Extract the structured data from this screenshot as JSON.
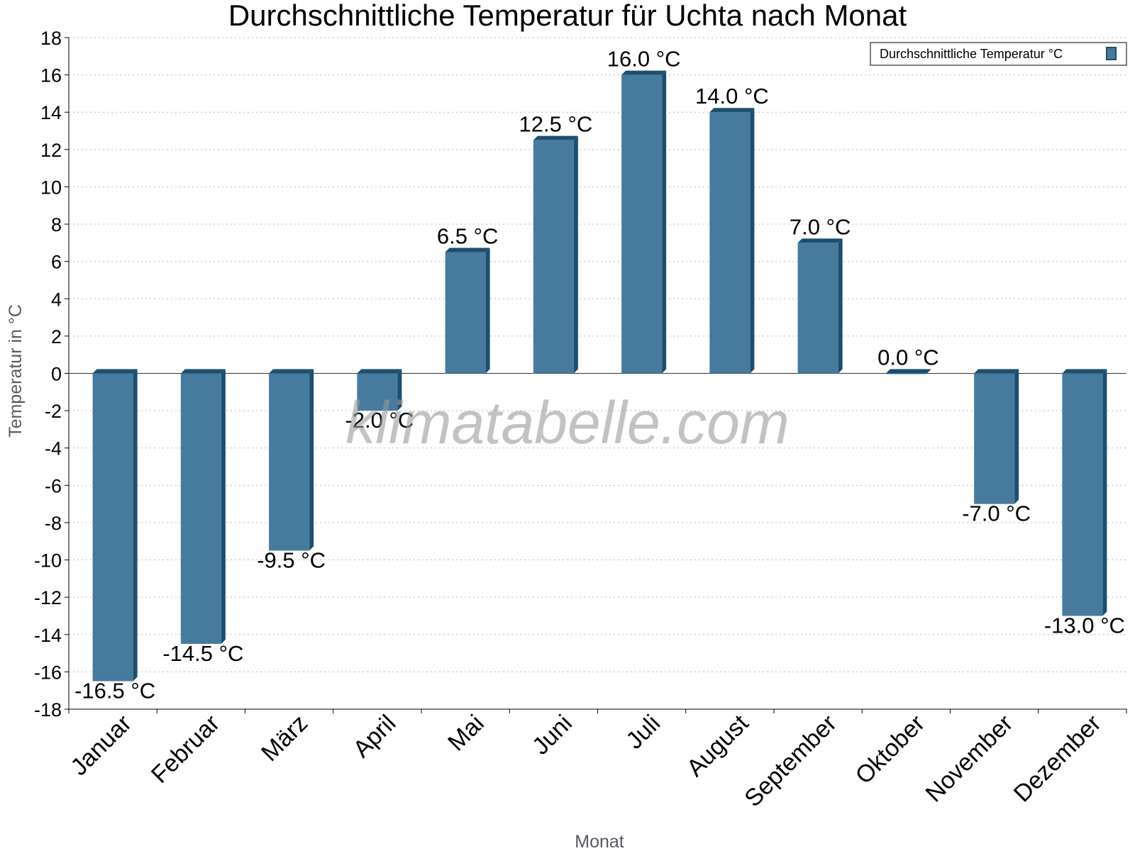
{
  "chart_data": {
    "type": "bar",
    "title": "Durchschnittliche Temperatur für Uchta nach Monat",
    "xlabel": "Monat",
    "ylabel": "Temperatur in °C",
    "categories": [
      "Januar",
      "Februar",
      "März",
      "April",
      "Mai",
      "Juni",
      "Juli",
      "August",
      "September",
      "Oktober",
      "November",
      "Dezember"
    ],
    "series": [
      {
        "name": "Durchschnittliche Temperatur °C",
        "values": [
          -16.5,
          -14.5,
          -9.5,
          -2.0,
          6.5,
          12.5,
          16.0,
          14.0,
          7.0,
          0.0,
          -7.0,
          -13.0
        ],
        "labels": [
          "-16.5 °C",
          "-14.5 °C",
          "-9.5 °C",
          "-2.0 °C",
          "6.5 °C",
          "12.5 °C",
          "16.0 °C",
          "14.0 °C",
          "7.0 °C",
          "0.0 °C",
          "-7.0 °C",
          "-13.0 °C"
        ]
      }
    ],
    "ylim": [
      -18,
      18
    ],
    "yticks": [
      18,
      16,
      14,
      12,
      10,
      8,
      6,
      4,
      2,
      0,
      -2,
      -4,
      -6,
      -8,
      -10,
      -12,
      -14,
      -16,
      -18
    ],
    "grid": true,
    "legend_position": "top-right",
    "colors": {
      "bar": "#467b9d",
      "bar_dark": "#1d4e6e",
      "grid": "#b8b8b8"
    }
  },
  "watermark": "klimatabelle.com"
}
